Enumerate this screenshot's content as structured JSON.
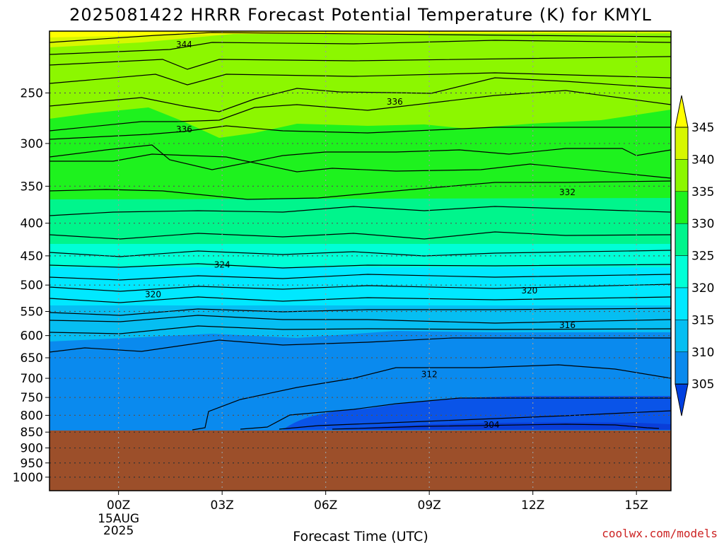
{
  "chart_data": {
    "type": "contour",
    "title": "2025081422 HRRR Forecast Potential Temperature (K) for KMYL",
    "xlabel": "Forecast Time (UTC)",
    "ylabel": "",
    "credit": "coolwx.com/models",
    "x_ticks": [
      "00Z",
      "03Z",
      "06Z",
      "09Z",
      "12Z",
      "15Z"
    ],
    "x_tick_hours": [
      0,
      3,
      6,
      9,
      12,
      15
    ],
    "x_range_hours": [
      -2,
      16
    ],
    "x_date_label": [
      "15AUG",
      "2025"
    ],
    "y_ticks": [
      250,
      300,
      350,
      400,
      450,
      500,
      550,
      600,
      650,
      700,
      750,
      800,
      850,
      900,
      950,
      1000
    ],
    "y_range_hpa": [
      200,
      1050
    ],
    "y_scale": "log",
    "surface_pressure_hpa": 845,
    "grid": "dotted",
    "colorbar": {
      "levels": [
        305,
        310,
        315,
        320,
        325,
        330,
        335,
        340,
        345
      ],
      "labels": [
        "305",
        "310",
        "315",
        "320",
        "325",
        "330",
        "335",
        "340",
        "345"
      ],
      "colors": [
        "#0a54e8",
        "#0a8aee",
        "#06bef2",
        "#00e8ff",
        "#00ffd6",
        "#00f58c",
        "#1ef21e",
        "#8cf700",
        "#d7f700",
        "#ffff00",
        "#0040e0"
      ]
    },
    "contour_labels": [
      {
        "text": "344",
        "hour": 1.9,
        "p": 210
      },
      {
        "text": "336",
        "hour": 8.0,
        "p": 258
      },
      {
        "text": "336",
        "hour": 1.9,
        "p": 285
      },
      {
        "text": "332",
        "hour": 13.0,
        "p": 358
      },
      {
        "text": "324",
        "hour": 3.0,
        "p": 465
      },
      {
        "text": "320",
        "hour": 1.0,
        "p": 517
      },
      {
        "text": "320",
        "hour": 11.9,
        "p": 510
      },
      {
        "text": "316",
        "hour": 13.0,
        "p": 578
      },
      {
        "text": "312",
        "hour": 9.0,
        "p": 690
      },
      {
        "text": "304",
        "hour": 10.8,
        "p": 828
      }
    ]
  }
}
